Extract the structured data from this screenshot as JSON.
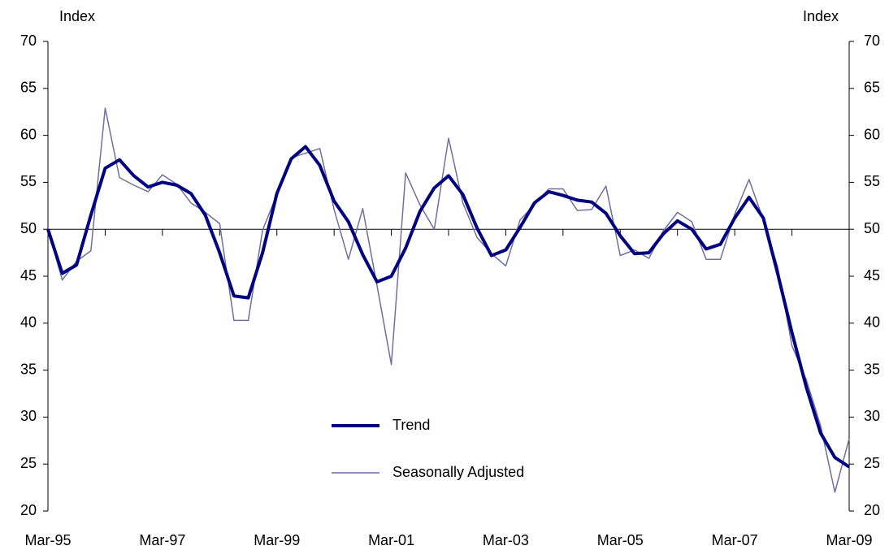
{
  "chart_data": {
    "type": "line",
    "ylabel": "Index",
    "y2label": "Index",
    "categories": [
      "Mar-95",
      null,
      null,
      null,
      null,
      null,
      null,
      null,
      "Mar-97",
      null,
      null,
      null,
      null,
      null,
      null,
      null,
      "Mar-99",
      null,
      null,
      null,
      null,
      null,
      null,
      null,
      "Mar-01",
      null,
      null,
      null,
      null,
      null,
      null,
      null,
      "Mar-03",
      null,
      null,
      null,
      null,
      null,
      null,
      null,
      "Mar-05",
      null,
      null,
      null,
      null,
      null,
      null,
      null,
      "Mar-07",
      null,
      null,
      null,
      null,
      null,
      null,
      null,
      "Mar-09"
    ],
    "series": [
      {
        "name": "Trend",
        "color": "#000080",
        "width": 4,
        "values": [
          50,
          45.3,
          46.2,
          51.5,
          56.5,
          57.4,
          55.7,
          54.5,
          55.0,
          54.7,
          53.8,
          51.5,
          47.5,
          42.9,
          42.7,
          47.5,
          53.8,
          57.5,
          58.8,
          56.8,
          53.0,
          50.8,
          47.3,
          44.4,
          45.0,
          48.0,
          51.9,
          54.4,
          55.7,
          53.7,
          50.1,
          47.2,
          47.8,
          50.2,
          52.8,
          54.0,
          53.6,
          53.1,
          52.9,
          51.7,
          49.3,
          47.4,
          47.5,
          49.5,
          50.9,
          50.0,
          47.9,
          48.4,
          51.2,
          53.4,
          51.2,
          45.3,
          39.0,
          33.2,
          28.3,
          25.7,
          24.7
        ]
      },
      {
        "name": "Seasonally Adjusted",
        "color": "#6f6fa0",
        "width": 1.5,
        "values": [
          50,
          44.6,
          46.6,
          47.7,
          62.9,
          55.5,
          54.7,
          54.0,
          55.8,
          54.8,
          52.8,
          51.8,
          50.6,
          40.3,
          40.3,
          49.9,
          53.7,
          57.6,
          58.1,
          58.6,
          52.1,
          46.8,
          52.2,
          44.0,
          35.6,
          56.0,
          52.6,
          50.0,
          59.7,
          52.8,
          49.1,
          47.4,
          46.1,
          51.0,
          52.6,
          54.3,
          54.3,
          52.0,
          52.1,
          54.6,
          47.2,
          47.8,
          46.9,
          49.8,
          51.8,
          50.8,
          46.8,
          46.8,
          51.6,
          55.3,
          51.0,
          46.0,
          37.6,
          34.0,
          29.1,
          22.0,
          27.7
        ]
      }
    ],
    "ylim": [
      20,
      70
    ],
    "yticks": [
      20,
      25,
      30,
      35,
      40,
      45,
      50,
      55,
      60,
      65,
      70
    ],
    "y2lim": [
      20,
      70
    ],
    "y2ticks": [
      20,
      25,
      30,
      35,
      40,
      45,
      50,
      55,
      60,
      65,
      70
    ],
    "baseline": 50,
    "legend": "lower center"
  }
}
